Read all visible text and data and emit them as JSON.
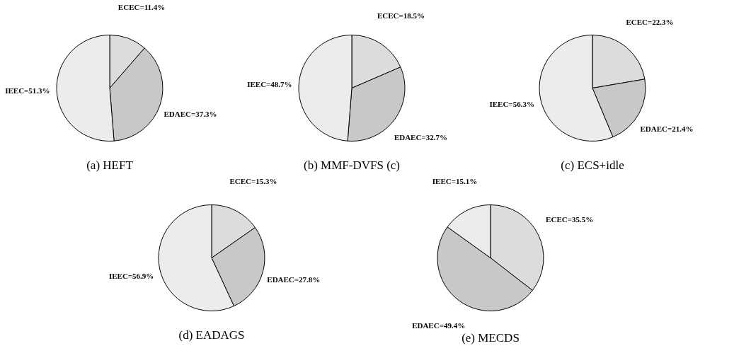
{
  "chart_data": [
    {
      "type": "pie",
      "title": "(a) HEFT",
      "categories": [
        "ECEC",
        "EDAEC",
        "IEEC"
      ],
      "values": [
        11.4,
        37.3,
        51.3
      ],
      "colors": [
        "#dcdcdc",
        "#c8c8c8",
        "#ececec"
      ],
      "value_labels": [
        "=11.4%",
        "=37.3%",
        "=51.3%"
      ]
    },
    {
      "type": "pie",
      "title": "(b) MMF-DVFS (c)",
      "categories": [
        "ECEC",
        "EDAEC",
        "IEEC"
      ],
      "values": [
        18.5,
        32.7,
        48.7
      ],
      "colors": [
        "#dcdcdc",
        "#c8c8c8",
        "#ececec"
      ],
      "value_labels": [
        "=18.5%",
        "=32.7%",
        "=48.7%"
      ]
    },
    {
      "type": "pie",
      "title": "(c) ECS+idle",
      "categories": [
        "ECEC",
        "EDAEC",
        "IEEC"
      ],
      "values": [
        22.3,
        21.4,
        56.3
      ],
      "colors": [
        "#dcdcdc",
        "#c8c8c8",
        "#ececec"
      ],
      "value_labels": [
        "=22.3%",
        "=21.4%",
        "=56.3%"
      ]
    },
    {
      "type": "pie",
      "title": "(d) EADAGS",
      "categories": [
        "ECEC",
        "EDAEC",
        "IEEC"
      ],
      "values": [
        15.3,
        27.8,
        56.9
      ],
      "colors": [
        "#dcdcdc",
        "#c8c8c8",
        "#ececec"
      ],
      "value_labels": [
        "=15.3%",
        "=27.8%",
        "=56.9%"
      ]
    },
    {
      "type": "pie",
      "title": "(e) MECDS",
      "categories": [
        "ECEC",
        "EDAEC",
        "IEEC"
      ],
      "values": [
        35.5,
        49.4,
        15.1
      ],
      "colors": [
        "#dcdcdc",
        "#c8c8c8",
        "#ececec"
      ],
      "value_labels": [
        "=35.5%",
        "=49.4%",
        "=15.1%"
      ]
    }
  ]
}
